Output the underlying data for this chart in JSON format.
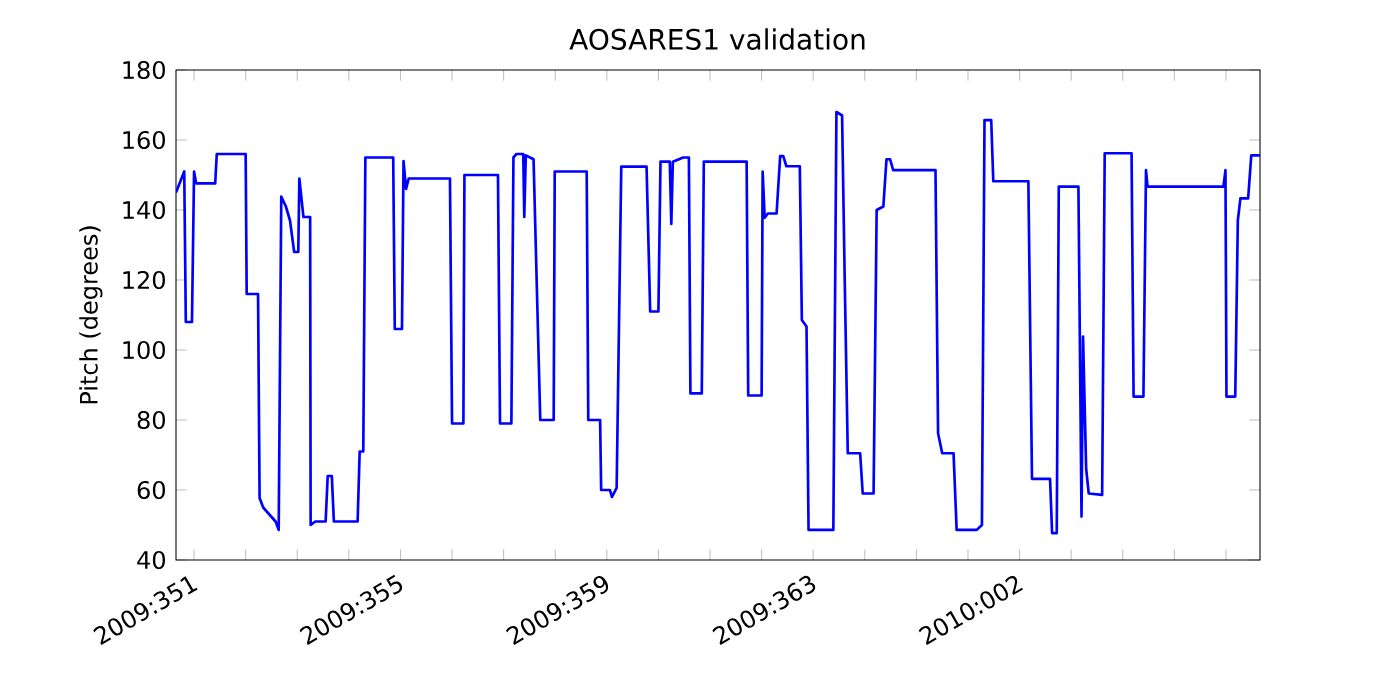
{
  "chart_data": {
    "type": "line",
    "title": "AOSARES1 validation",
    "ylabel": "Pitch (degrees)",
    "xlim": [
      "2009-12-16T15:36",
      "2010-01-06T15:50"
    ],
    "ylim": [
      40,
      180
    ],
    "xticks": [
      {
        "value": "2009-12-17",
        "label": "2009:351"
      },
      {
        "value": "2009-12-18",
        "label": null
      },
      {
        "value": "2009-12-19",
        "label": null
      },
      {
        "value": "2009-12-20",
        "label": null
      },
      {
        "value": "2009-12-21",
        "label": "2009:355"
      },
      {
        "value": "2009-12-22",
        "label": null
      },
      {
        "value": "2009-12-23",
        "label": null
      },
      {
        "value": "2009-12-24",
        "label": null
      },
      {
        "value": "2009-12-25",
        "label": "2009:359"
      },
      {
        "value": "2009-12-26",
        "label": null
      },
      {
        "value": "2009-12-27",
        "label": null
      },
      {
        "value": "2009-12-28",
        "label": null
      },
      {
        "value": "2009-12-29",
        "label": "2009:363"
      },
      {
        "value": "2009-12-30",
        "label": null
      },
      {
        "value": "2009-12-31",
        "label": null
      },
      {
        "value": "2010-01-01",
        "label": null
      },
      {
        "value": "2010-01-02",
        "label": "2010:002"
      },
      {
        "value": "2010-01-03",
        "label": null
      },
      {
        "value": "2010-01-04",
        "label": null
      },
      {
        "value": "2010-01-05",
        "label": null
      },
      {
        "value": "2010-01-06",
        "label": null
      }
    ],
    "yticks": [
      40,
      60,
      80,
      100,
      120,
      140,
      160,
      180
    ],
    "grid": false,
    "marker": "none",
    "line_style": "solid",
    "series": [
      {
        "color": "#0000ff",
        "x": [
          "2009-12-16T15:36",
          "2009-12-16T19:26",
          "2009-12-16T20:10",
          "2009-12-16T23:02",
          "2009-12-17T00:00",
          "2009-12-17T00:58",
          "2009-12-17T09:50",
          "2009-12-17T10:34",
          "2009-12-18T00:00",
          "2009-12-18T00:29",
          "2009-12-18T05:46",
          "2009-12-18T06:29",
          "2009-12-18T08:10",
          "2009-12-18T13:55",
          "2009-12-18T15:22",
          "2009-12-18T16:34",
          "2009-12-18T18:43",
          "2009-12-18T20:38",
          "2009-12-18T22:34",
          "2009-12-19T00:29",
          "2009-12-19T00:58",
          "2009-12-19T02:53",
          "2009-12-19T06:00",
          "2009-12-19T06:14",
          "2009-12-19T08:24",
          "2009-12-19T13:12",
          "2009-12-19T14:10",
          "2009-12-19T16:05",
          "2009-12-19T17:02",
          "2009-12-20T04:05",
          "2009-12-20T05:02",
          "2009-12-20T06:43",
          "2009-12-20T07:41",
          "2009-12-20T20:38",
          "2009-12-20T21:22",
          "2009-12-21T00:43",
          "2009-12-21T01:26",
          "2009-12-21T02:38",
          "2009-12-21T03:50",
          "2009-12-21T23:02",
          "2009-12-22T00:00",
          "2009-12-22T05:17",
          "2009-12-22T05:46",
          "2009-12-22T21:22",
          "2009-12-22T22:19",
          "2009-12-23T03:36",
          "2009-12-23T04:34",
          "2009-12-23T06:00",
          "2009-12-23T09:07",
          "2009-12-23T09:36",
          "2009-12-23T10:19",
          "2009-12-23T13:55",
          "2009-12-23T17:02",
          "2009-12-23T23:17",
          "2009-12-23T23:46",
          "2009-12-24T14:38",
          "2009-12-24T15:22",
          "2009-12-24T20:53",
          "2009-12-24T21:22",
          "2009-12-25T01:26",
          "2009-12-25T02:24",
          "2009-12-25T04:34",
          "2009-12-25T06:43",
          "2009-12-25T18:29",
          "2009-12-25T20:10",
          "2009-12-26T00:00",
          "2009-12-26T00:58",
          "2009-12-26T05:17",
          "2009-12-26T06:00",
          "2009-12-26T06:43",
          "2009-12-26T11:31",
          "2009-12-26T14:10",
          "2009-12-26T14:53",
          "2009-12-26T20:10",
          "2009-12-26T21:07",
          "2009-12-27T17:02",
          "2009-12-27T17:46",
          "2009-12-28T00:00",
          "2009-12-28T00:29",
          "2009-12-28T01:26",
          "2009-12-28T02:53",
          "2009-12-28T06:58",
          "2009-12-28T08:38",
          "2009-12-28T10:05",
          "2009-12-28T11:31",
          "2009-12-28T17:46",
          "2009-12-28T18:43",
          "2009-12-28T20:53",
          "2009-12-28T21:50",
          "2009-12-29T09:22",
          "2009-12-29T10:48",
          "2009-12-29T13:26",
          "2009-12-29T14:38",
          "2009-12-29T16:05",
          "2009-12-29T21:50",
          "2009-12-29T23:02",
          "2009-12-30T04:05",
          "2009-12-30T05:31",
          "2009-12-30T08:38",
          "2009-12-30T10:05",
          "2009-12-30T11:46",
          "2009-12-30T13:12",
          "2009-12-31T08:53",
          "2009-12-31T10:05",
          "2009-12-31T12:00",
          "2009-12-31T17:17",
          "2009-12-31T18:43",
          "2010-01-01T04:05",
          "2010-01-01T06:29",
          "2010-01-01T07:41",
          "2010-01-01T10:48",
          "2010-01-01T11:46",
          "2010-01-02T04:05",
          "2010-01-02T05:46",
          "2010-01-02T14:10",
          "2010-01-02T15:07",
          "2010-01-02T17:17",
          "2010-01-02T18:14",
          "2010-01-03T03:22",
          "2010-01-03T04:48",
          "2010-01-03T05:31",
          "2010-01-03T06:58",
          "2010-01-03T08:10",
          "2010-01-03T14:24",
          "2010-01-03T15:36",
          "2010-01-04T04:05",
          "2010-01-04T05:02",
          "2010-01-04T09:36",
          "2010-01-04T10:48",
          "2010-01-04T11:31",
          "2010-01-05T22:48",
          "2010-01-05T23:46",
          "2010-01-06T00:14",
          "2010-01-06T04:19",
          "2010-01-06T05:31",
          "2010-01-06T06:43",
          "2010-01-06T10:19",
          "2010-01-06T11:46",
          "2010-01-06T15:50"
        ],
        "values": [
          145,
          151,
          108,
          108,
          151,
          147.6,
          147.6,
          156,
          156,
          116,
          116,
          57.7,
          55,
          51,
          48.6,
          143.8,
          141,
          137,
          128,
          128,
          149,
          138,
          138,
          50,
          51,
          51,
          64,
          64,
          51,
          51,
          71,
          71,
          155,
          155,
          106,
          106,
          154,
          146,
          149,
          149,
          79,
          79,
          150,
          150,
          79,
          79,
          155,
          156,
          156,
          138,
          155.6,
          154.5,
          80,
          80,
          151,
          151,
          80,
          80,
          60,
          60,
          58,
          60.6,
          152.4,
          152.4,
          111,
          111,
          153.8,
          153.8,
          136,
          153.8,
          155,
          155,
          87.6,
          87.6,
          153.8,
          153.8,
          87,
          87,
          151,
          137.8,
          139,
          139,
          155.4,
          155.4,
          152.5,
          152.5,
          108.6,
          106.7,
          48.6,
          48.6,
          168,
          167,
          121,
          70.5,
          70.5,
          59,
          59,
          140,
          141,
          154.5,
          154.5,
          151.4,
          151.4,
          76.2,
          70.5,
          70.5,
          48.6,
          48.6,
          50,
          165.7,
          165.7,
          148.2,
          148.2,
          63.2,
          63.2,
          47.7,
          47.7,
          146.7,
          146.7,
          52.4,
          103.8,
          66,
          59,
          58.6,
          156.2,
          156.2,
          86.7,
          86.7,
          151.4,
          146.7,
          146.7,
          151.4,
          86.7,
          86.7,
          137,
          143.3,
          143.3,
          155.6,
          155.6
        ]
      }
    ]
  }
}
